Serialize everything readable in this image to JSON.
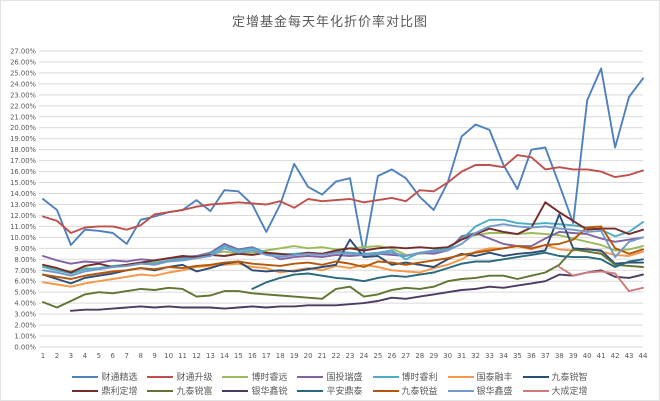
{
  "title": "定增基金每天年化折价率对比图",
  "chart_data": {
    "type": "line",
    "title": "定增基金每天年化折价率对比图",
    "xlabel": "",
    "ylabel": "",
    "x": [
      1,
      2,
      3,
      4,
      5,
      6,
      7,
      8,
      9,
      10,
      11,
      12,
      13,
      14,
      15,
      16,
      17,
      18,
      19,
      20,
      21,
      22,
      23,
      24,
      25,
      26,
      27,
      28,
      29,
      30,
      31,
      32,
      33,
      34,
      35,
      36,
      37,
      38,
      39,
      40,
      41,
      42,
      43,
      44
    ],
    "ylim": [
      0,
      27
    ],
    "y_tick_step": 1,
    "y_tick_suffix": "%",
    "y_tick_decimals": 2,
    "grid": true,
    "legend_position": "bottom",
    "colors": {
      "grid": "#d9d9d9",
      "axis_text": "#595959",
      "title_text": "#595959",
      "background": "#ffffff"
    },
    "series": [
      {
        "name": "财通精选",
        "color": "#4F81BD",
        "values": [
          13.5,
          12.5,
          9.3,
          10.7,
          10.6,
          10.4,
          9.4,
          11.6,
          11.9,
          12.3,
          12.5,
          13.4,
          12.4,
          14.3,
          14.2,
          13.0,
          10.5,
          13.0,
          16.7,
          14.6,
          13.9,
          15.1,
          15.4,
          8.5,
          15.6,
          16.2,
          15.4,
          13.7,
          12.5,
          15.0,
          19.2,
          20.3,
          19.8,
          16.6,
          14.4,
          18.0,
          18.2,
          14.8,
          11.3,
          22.5,
          25.4,
          18.2,
          22.8,
          24.5
        ]
      },
      {
        "name": "财通升级",
        "color": "#C0504D",
        "values": [
          11.9,
          11.5,
          10.4,
          10.9,
          11.0,
          11.0,
          10.7,
          11.1,
          12.1,
          12.3,
          12.5,
          12.8,
          13.0,
          13.1,
          13.2,
          13.1,
          13.0,
          13.3,
          12.7,
          13.5,
          13.3,
          13.4,
          13.5,
          13.2,
          13.4,
          13.6,
          13.3,
          14.3,
          14.2,
          15.0,
          16.0,
          16.6,
          16.6,
          16.4,
          17.5,
          17.3,
          16.2,
          16.4,
          16.2,
          16.2,
          16.0,
          15.5,
          15.7,
          16.1
        ]
      },
      {
        "name": "博时睿远",
        "color": "#9BBB59",
        "values": [
          7.3,
          7.1,
          6.9,
          7.2,
          7.1,
          7.3,
          7.4,
          7.6,
          7.7,
          7.9,
          8.1,
          8.3,
          8.5,
          8.7,
          8.5,
          8.6,
          8.8,
          9.0,
          9.2,
          9.0,
          9.1,
          8.9,
          9.0,
          9.1,
          9.2,
          9.0,
          8.4,
          8.5,
          8.6,
          8.8,
          10.0,
          10.2,
          10.4,
          10.4,
          10.3,
          10.4,
          10.3,
          10.2,
          9.9,
          9.6,
          9.3,
          8.8,
          8.9,
          9.2
        ]
      },
      {
        "name": "国投瑞盛",
        "color": "#8064A2",
        "values": [
          8.3,
          7.9,
          7.6,
          7.8,
          7.7,
          7.9,
          7.8,
          8.0,
          7.9,
          8.1,
          8.2,
          8.3,
          8.6,
          9.4,
          8.9,
          9.1,
          8.6,
          8.0,
          8.2,
          8.3,
          8.2,
          8.4,
          8.3,
          8.4,
          8.5,
          8.4,
          8.3,
          8.6,
          8.5,
          8.8,
          10.1,
          10.4,
          9.9,
          9.4,
          9.2,
          9.2,
          9.9,
          10.5,
          10.4,
          10.3,
          9.9,
          9.6,
          9.8,
          10.0
        ]
      },
      {
        "name": "博时睿利",
        "color": "#4BACC6",
        "values": [
          7.3,
          7.0,
          6.7,
          7.1,
          7.2,
          7.4,
          7.5,
          7.7,
          7.6,
          7.9,
          8.0,
          8.2,
          8.5,
          9.2,
          8.8,
          9.0,
          8.6,
          8.4,
          8.5,
          8.6,
          8.5,
          8.7,
          8.6,
          8.5,
          8.6,
          8.8,
          8.0,
          8.6,
          8.8,
          9.0,
          9.8,
          11.0,
          11.6,
          11.6,
          11.3,
          11.2,
          11.3,
          11.2,
          11.1,
          10.9,
          10.7,
          10.1,
          10.5,
          11.4
        ]
      },
      {
        "name": "国泰融丰",
        "color": "#F79646",
        "values": [
          5.9,
          5.7,
          5.5,
          5.8,
          6.0,
          6.2,
          6.4,
          6.6,
          6.5,
          6.8,
          7.0,
          7.3,
          7.4,
          7.5,
          7.6,
          7.3,
          7.2,
          6.8,
          7.0,
          7.2,
          7.0,
          7.4,
          7.2,
          7.5,
          7.3,
          7.0,
          6.9,
          6.8,
          7.2,
          7.5,
          8.0,
          8.7,
          9.0,
          9.0,
          9.2,
          8.9,
          9.3,
          8.9,
          8.8,
          9.0,
          8.7,
          8.4,
          8.3,
          8.7
        ]
      },
      {
        "name": "九泰锐智",
        "color": "#2C4D75",
        "values": [
          6.6,
          6.2,
          5.8,
          6.3,
          6.5,
          6.7,
          7.0,
          7.2,
          7.0,
          7.3,
          7.5,
          6.9,
          7.2,
          7.6,
          7.8,
          7.0,
          6.9,
          7.0,
          6.9,
          7.1,
          7.3,
          7.5,
          9.8,
          8.2,
          8.3,
          7.5,
          7.7,
          7.5,
          7.3,
          8.0,
          8.5,
          8.3,
          8.6,
          8.3,
          8.5,
          8.6,
          8.8,
          12.1,
          9.0,
          8.9,
          8.8,
          7.6,
          7.7,
          7.7
        ]
      },
      {
        "name": "鼎利定增",
        "color": "#772C2A",
        "values": [
          7.5,
          7.2,
          6.8,
          7.4,
          7.6,
          7.3,
          7.5,
          7.7,
          7.9,
          8.1,
          8.3,
          8.2,
          8.4,
          8.3,
          8.5,
          8.4,
          8.6,
          8.5,
          8.4,
          8.6,
          8.5,
          8.8,
          9.0,
          8.8,
          9.0,
          9.1,
          9.0,
          9.1,
          9.0,
          9.1,
          9.8,
          10.3,
          10.8,
          10.5,
          10.3,
          10.9,
          13.2,
          12.3,
          11.5,
          10.7,
          10.8,
          10.8,
          10.3,
          10.7
        ]
      },
      {
        "name": "九泰锐富",
        "color": "#5F7530",
        "values": [
          4.1,
          3.6,
          4.2,
          4.8,
          5.0,
          4.9,
          5.1,
          5.3,
          5.2,
          5.4,
          5.3,
          4.6,
          4.7,
          5.1,
          5.1,
          4.9,
          4.8,
          4.7,
          4.6,
          4.5,
          4.4,
          5.3,
          5.5,
          4.6,
          4.8,
          5.2,
          5.4,
          5.3,
          5.5,
          6.0,
          6.2,
          6.3,
          6.5,
          6.5,
          6.2,
          6.5,
          6.8,
          7.5,
          8.9,
          8.7,
          8.5,
          7.5,
          7.4,
          7.3
        ]
      },
      {
        "name": "银华鑫锐",
        "color": "#4D3B62",
        "values": [
          null,
          null,
          3.3,
          3.4,
          3.4,
          3.5,
          3.6,
          3.7,
          3.6,
          3.7,
          3.6,
          3.6,
          3.6,
          3.5,
          3.6,
          3.7,
          3.6,
          3.7,
          3.7,
          3.8,
          3.8,
          3.8,
          3.9,
          4.0,
          4.2,
          4.5,
          4.4,
          4.6,
          4.8,
          5.0,
          5.2,
          5.3,
          5.5,
          5.4,
          5.6,
          5.8,
          6.0,
          6.6,
          6.5,
          6.8,
          7.0,
          6.4,
          6.3,
          6.6
        ]
      },
      {
        "name": "平安鼎泰",
        "color": "#276A7C",
        "values": [
          null,
          null,
          null,
          null,
          null,
          null,
          null,
          null,
          null,
          null,
          null,
          null,
          null,
          null,
          null,
          5.3,
          5.9,
          6.3,
          6.6,
          6.7,
          6.5,
          6.3,
          6.2,
          6.0,
          6.3,
          6.5,
          6.4,
          6.6,
          6.8,
          7.2,
          7.6,
          7.8,
          7.8,
          8.0,
          8.2,
          8.4,
          8.6,
          8.3,
          8.2,
          8.2,
          8.0,
          7.3,
          7.8,
          8.0
        ]
      },
      {
        "name": "九泰锐益",
        "color": "#B65708",
        "values": [
          6.6,
          6.4,
          6.2,
          6.5,
          6.7,
          6.9,
          7.0,
          7.2,
          7.1,
          7.3,
          7.2,
          7.4,
          7.5,
          7.7,
          7.8,
          7.6,
          7.5,
          7.4,
          7.6,
          7.7,
          7.5,
          7.8,
          7.6,
          7.3,
          7.8,
          7.7,
          7.5,
          7.7,
          7.9,
          8.1,
          8.4,
          8.6,
          8.8,
          9.0,
          9.2,
          9.0,
          9.3,
          9.4,
          9.8,
          10.9,
          11.0,
          9.0,
          8.5,
          8.9
        ]
      },
      {
        "name": "银华鑫盛",
        "color": "#729ACA",
        "values": [
          7.0,
          6.8,
          6.5,
          6.9,
          7.1,
          7.3,
          7.4,
          7.6,
          7.5,
          7.8,
          7.9,
          8.1,
          8.3,
          9.0,
          8.6,
          8.8,
          8.4,
          8.2,
          8.4,
          8.5,
          8.4,
          8.6,
          8.5,
          8.4,
          8.5,
          8.6,
          8.3,
          8.6,
          8.7,
          8.8,
          9.4,
          10.4,
          11.0,
          11.2,
          11.0,
          10.9,
          11.0,
          10.8,
          10.7,
          10.5,
          10.6,
          8.2,
          9.6,
          10.0
        ]
      },
      {
        "name": "大成定增",
        "color": "#CF7B79",
        "values": [
          null,
          null,
          null,
          null,
          null,
          null,
          null,
          null,
          null,
          null,
          null,
          null,
          null,
          null,
          null,
          null,
          null,
          null,
          null,
          null,
          null,
          null,
          null,
          null,
          null,
          null,
          null,
          null,
          null,
          null,
          null,
          null,
          null,
          null,
          null,
          null,
          null,
          7.3,
          6.5,
          6.8,
          6.9,
          6.7,
          5.1,
          5.4
        ]
      }
    ],
    "legend_rows": [
      [
        0,
        1,
        2,
        3,
        4,
        5,
        6
      ],
      [
        7,
        8,
        9,
        10,
        11,
        12,
        13
      ]
    ]
  }
}
